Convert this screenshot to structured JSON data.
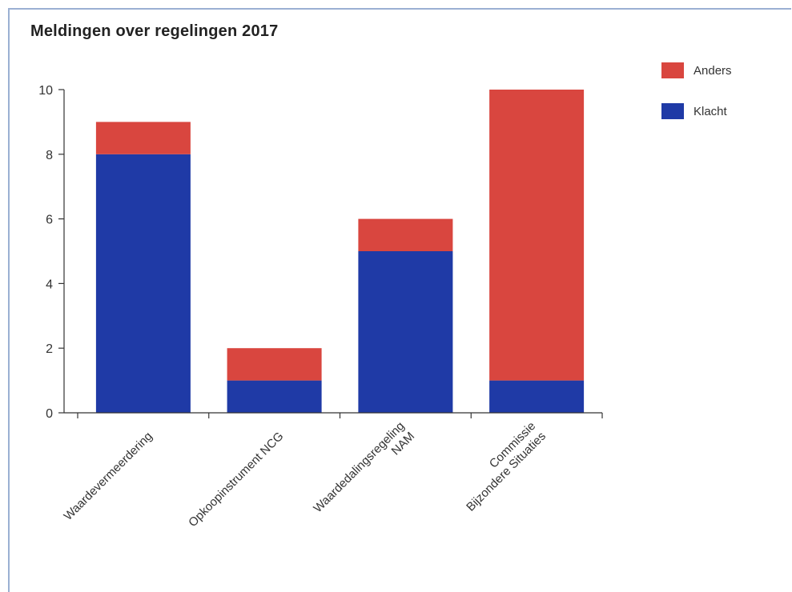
{
  "chart_data": {
    "type": "bar",
    "stacked": true,
    "title": "Meldingen over regelingen 2017",
    "categories": [
      [
        "Waardevermeerdering"
      ],
      [
        "Opkoopinstrument NCG"
      ],
      [
        "Waardedalingsregeling",
        "NAM"
      ],
      [
        "Commissie",
        "Bijzondere Situaties"
      ]
    ],
    "series": [
      {
        "name": "Klacht",
        "color": "#1f3aa6",
        "values": [
          8,
          1,
          5,
          1
        ]
      },
      {
        "name": "Anders",
        "color": "#d9463f",
        "values": [
          1,
          1,
          1,
          9
        ]
      }
    ],
    "ylim": [
      0,
      10
    ],
    "yticks": [
      0,
      2,
      4,
      6,
      8,
      10
    ],
    "grid": false,
    "legend_position": "top-right",
    "legend_order": [
      "Anders",
      "Klacht"
    ]
  }
}
